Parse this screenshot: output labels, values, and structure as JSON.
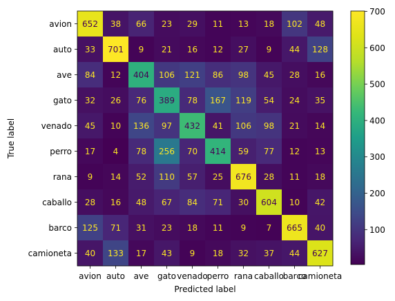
{
  "chart_data": {
    "type": "heatmap",
    "title": "",
    "xlabel": "Predicted label",
    "ylabel": "True label",
    "x_categories": [
      "avion",
      "auto",
      "ave",
      "gato",
      "venado",
      "perro",
      "rana",
      "caballo",
      "barco",
      "camioneta"
    ],
    "y_categories": [
      "avion",
      "auto",
      "ave",
      "gato",
      "venado",
      "perro",
      "rana",
      "caballo",
      "barco",
      "camioneta"
    ],
    "values": [
      [
        652,
        38,
        66,
        23,
        29,
        11,
        13,
        18,
        102,
        48
      ],
      [
        33,
        701,
        9,
        21,
        16,
        12,
        27,
        9,
        44,
        128
      ],
      [
        84,
        12,
        404,
        106,
        121,
        86,
        98,
        45,
        28,
        16
      ],
      [
        32,
        26,
        76,
        389,
        78,
        167,
        119,
        54,
        24,
        35
      ],
      [
        45,
        10,
        136,
        97,
        432,
        41,
        106,
        98,
        21,
        14
      ],
      [
        17,
        4,
        78,
        256,
        70,
        414,
        59,
        77,
        12,
        13
      ],
      [
        9,
        14,
        52,
        110,
        57,
        25,
        676,
        28,
        11,
        18
      ],
      [
        28,
        16,
        48,
        67,
        84,
        71,
        30,
        604,
        10,
        42
      ],
      [
        125,
        71,
        31,
        23,
        18,
        11,
        9,
        7,
        665,
        40
      ],
      [
        40,
        133,
        17,
        43,
        9,
        18,
        32,
        37,
        44,
        627
      ]
    ],
    "colormap": "viridis",
    "color_range": [
      4,
      701
    ],
    "colorbar_ticks": [
      100,
      200,
      300,
      400,
      500,
      600,
      700
    ],
    "grid": false
  }
}
